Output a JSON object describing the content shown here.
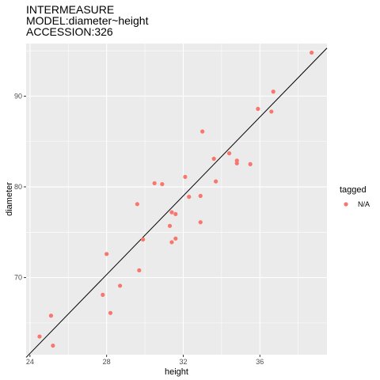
{
  "chart_data": {
    "type": "scatter",
    "title": [
      "INTERMEASURE",
      "MODEL:diameter~height",
      "ACCESSION:326"
    ],
    "xlabel": "height",
    "ylabel": "diameter",
    "xlim": [
      23.8,
      39.5
    ],
    "ylim": [
      61.5,
      95.8
    ],
    "xticks": [
      24,
      28,
      32,
      36
    ],
    "yticks": [
      70,
      80,
      90
    ],
    "grid": true,
    "legend": {
      "title": "tagged",
      "position": "right",
      "items": [
        {
          "label": "N/A",
          "color": "#F8766D"
        }
      ]
    },
    "reference_line": {
      "from": [
        23.8,
        61.2
      ],
      "to": [
        39.5,
        95.3
      ],
      "color": "#000000"
    },
    "series": [
      {
        "label": "N/A",
        "color": "#F8766D",
        "points": [
          [
            24.5,
            63.5
          ],
          [
            25.1,
            65.8
          ],
          [
            25.2,
            62.5
          ],
          [
            27.8,
            68.1
          ],
          [
            28.0,
            72.6
          ],
          [
            28.2,
            66.1
          ],
          [
            28.7,
            69.1
          ],
          [
            29.6,
            78.1
          ],
          [
            29.7,
            70.8
          ],
          [
            29.9,
            74.2
          ],
          [
            30.5,
            80.4
          ],
          [
            30.9,
            80.3
          ],
          [
            31.3,
            75.7
          ],
          [
            31.4,
            73.9
          ],
          [
            31.4,
            77.2
          ],
          [
            31.6,
            74.3
          ],
          [
            31.6,
            77.0
          ],
          [
            32.1,
            81.1
          ],
          [
            32.3,
            78.9
          ],
          [
            32.9,
            76.1
          ],
          [
            32.9,
            79.0
          ],
          [
            33.0,
            86.1
          ],
          [
            33.6,
            83.1
          ],
          [
            33.7,
            80.6
          ],
          [
            34.4,
            83.7
          ],
          [
            34.8,
            82.9
          ],
          [
            34.8,
            82.6
          ],
          [
            35.5,
            82.5
          ],
          [
            35.9,
            88.6
          ],
          [
            36.6,
            88.3
          ],
          [
            36.7,
            90.5
          ],
          [
            38.7,
            94.8
          ]
        ]
      }
    ]
  }
}
